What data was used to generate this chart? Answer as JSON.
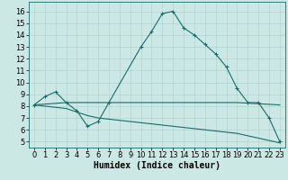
{
  "xlabel": "Humidex (Indice chaleur)",
  "bg_color": "#cce8e4",
  "grid_color": "#aacfcb",
  "line_color": "#1a6b6b",
  "x_ticks": [
    0,
    1,
    2,
    3,
    4,
    5,
    6,
    7,
    8,
    9,
    10,
    11,
    12,
    13,
    14,
    15,
    16,
    17,
    18,
    19,
    20,
    21,
    22,
    23
  ],
  "y_ticks": [
    5,
    6,
    7,
    8,
    9,
    10,
    11,
    12,
    13,
    14,
    15,
    16
  ],
  "ylim": [
    4.5,
    16.8
  ],
  "xlim": [
    -0.5,
    23.5
  ],
  "line1_x": [
    0,
    1,
    2,
    3,
    4,
    5,
    6,
    7,
    10,
    11,
    12,
    13,
    14,
    15,
    16,
    17,
    18,
    19,
    20,
    21,
    22,
    23
  ],
  "line1_y": [
    8.1,
    8.8,
    9.2,
    8.3,
    7.6,
    6.3,
    6.7,
    8.3,
    13.0,
    14.3,
    15.8,
    16.0,
    14.6,
    14.0,
    13.2,
    12.4,
    11.3,
    9.5,
    8.3,
    8.3,
    7.0,
    5.0
  ],
  "line2_x": [
    0,
    3,
    19,
    23
  ],
  "line2_y": [
    8.1,
    8.3,
    8.3,
    8.1
  ],
  "line3_x": [
    0,
    3,
    4,
    5,
    6,
    7,
    8,
    9,
    10,
    11,
    12,
    13,
    14,
    15,
    16,
    17,
    18,
    19,
    20,
    21,
    22,
    23
  ],
  "line3_y": [
    8.1,
    7.8,
    7.5,
    7.2,
    7.0,
    6.9,
    6.8,
    6.7,
    6.6,
    6.5,
    6.4,
    6.3,
    6.2,
    6.1,
    6.0,
    5.9,
    5.8,
    5.7,
    5.5,
    5.3,
    5.1,
    4.9
  ],
  "marker_size": 2.5,
  "font_size_label": 7,
  "font_size_tick": 6
}
